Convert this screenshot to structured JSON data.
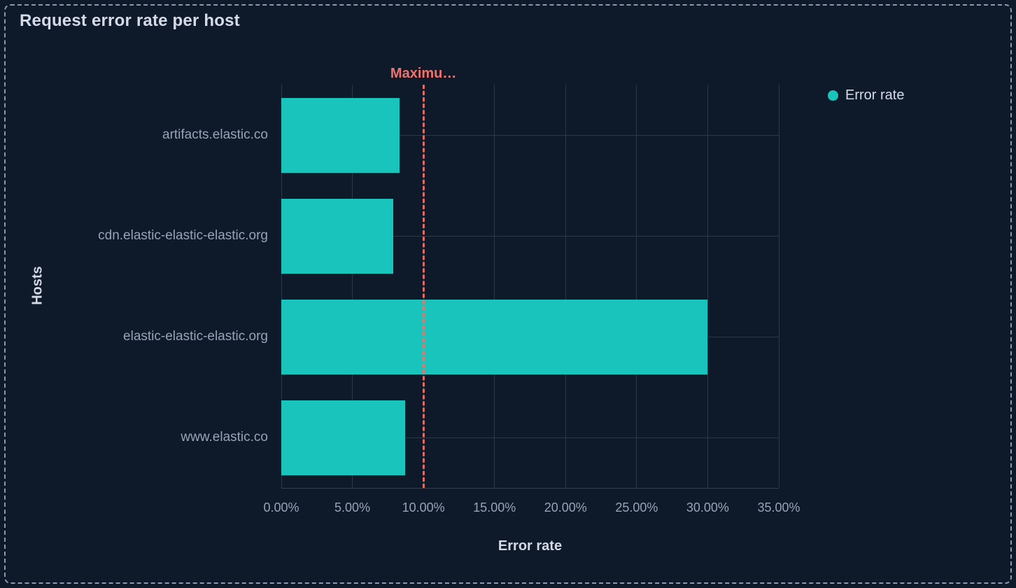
{
  "chart_data": {
    "type": "bar",
    "orientation": "horizontal",
    "title": "Request error rate per host",
    "xlabel": "Error rate",
    "ylabel": "Hosts",
    "xlim": [
      0,
      35
    ],
    "grid": true,
    "legend_position": "right",
    "categories": [
      "artifacts.elastic.co",
      "cdn.elastic-elastic-elastic.org",
      "elastic-elastic-elastic.org",
      "www.elastic.co"
    ],
    "series": [
      {
        "name": "Error rate",
        "values": [
          8.3,
          7.9,
          30,
          8.7
        ],
        "color": "#19c4bd"
      }
    ],
    "x_ticks": [
      {
        "value": 0,
        "label": "0.00%"
      },
      {
        "value": 5,
        "label": "5.00%"
      },
      {
        "value": 10,
        "label": "10.00%"
      },
      {
        "value": 15,
        "label": "15.00%"
      },
      {
        "value": 20,
        "label": "20.00%"
      },
      {
        "value": 25,
        "label": "25.00%"
      },
      {
        "value": 30,
        "label": "30.00%"
      },
      {
        "value": 35,
        "label": "35.00%"
      }
    ],
    "threshold": {
      "value": 10,
      "label": "Maximu…",
      "color": "#f0726a",
      "style": "dashed"
    }
  },
  "theme": {
    "background": "#0e1a2a",
    "panel_border": "#9fb1c8",
    "grid": "#2b374d",
    "title_text": "#d5dce8",
    "axis_title_text": "#d3dae6",
    "axis_label_text": "#97a3b7",
    "bar": "#19c4bd",
    "threshold": "#f0726a"
  }
}
